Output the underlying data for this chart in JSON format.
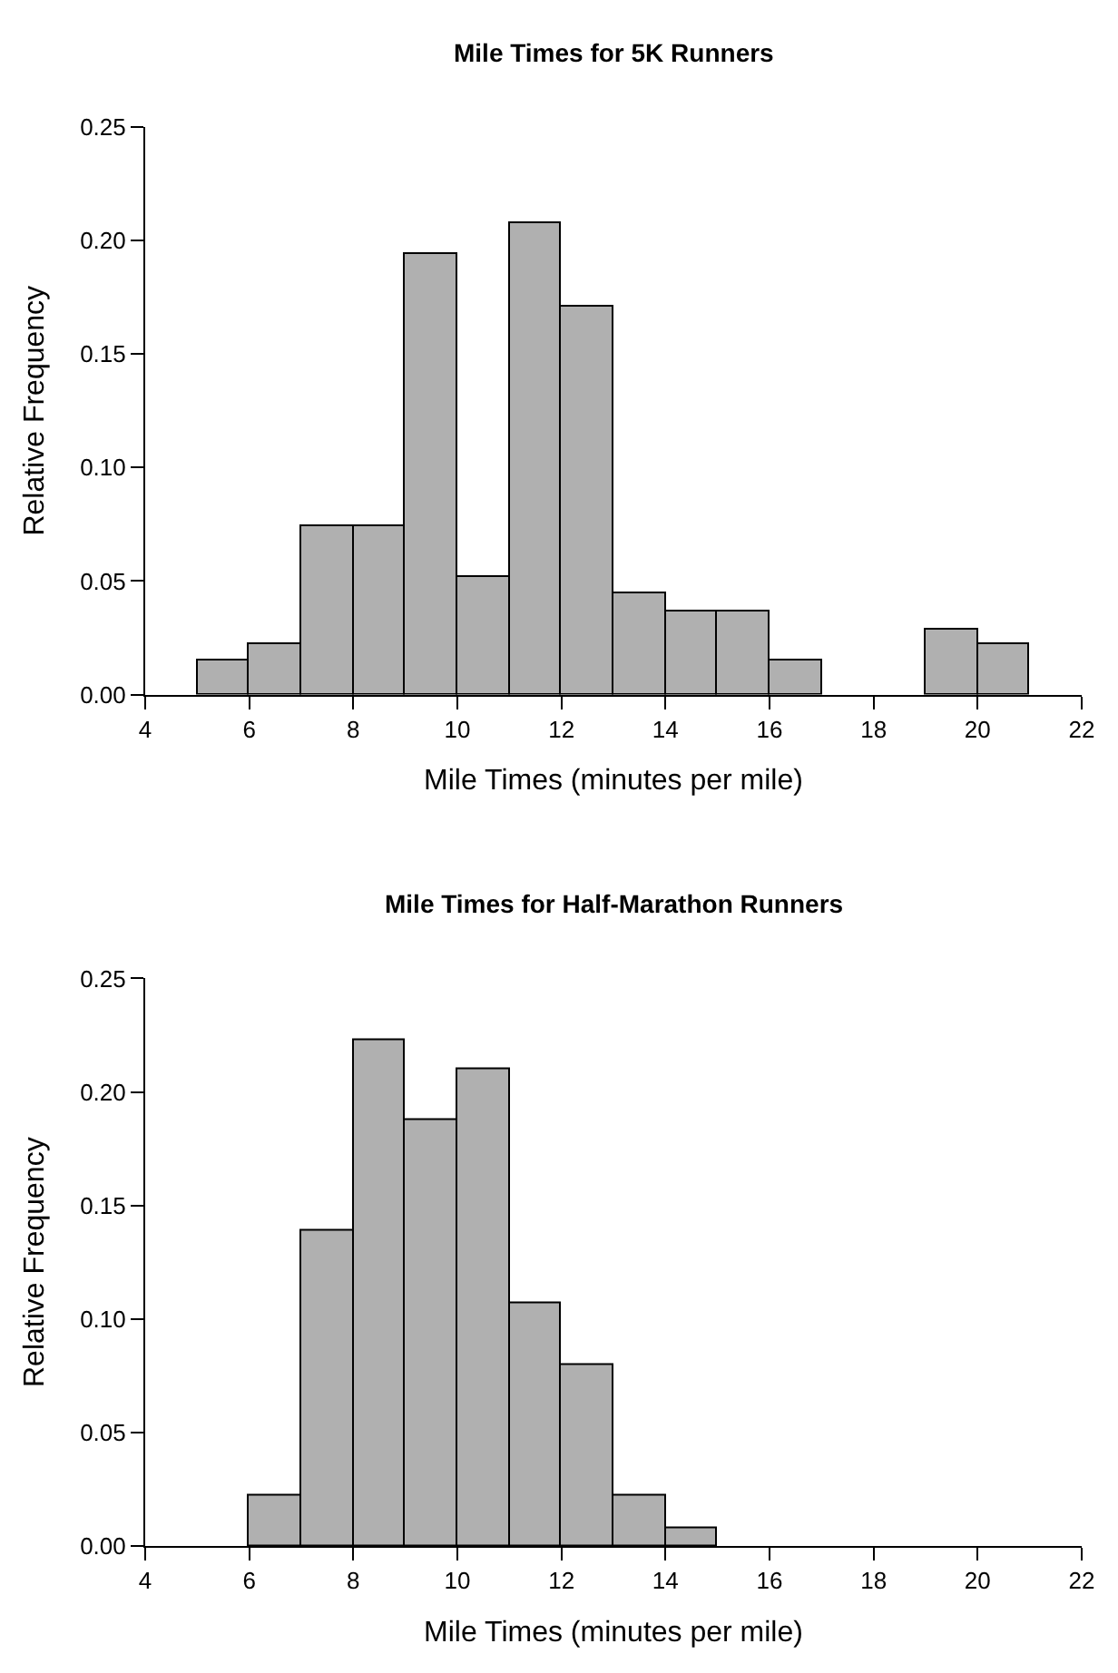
{
  "chart_data": [
    {
      "type": "histogram",
      "title": "Mile Times for 5K Runners",
      "xlabel": "Mile Times (minutes per mile)",
      "ylabel": "Relative Frequency",
      "color": "#b0b0b0",
      "bins": [
        4,
        5,
        6,
        7,
        8,
        9,
        10,
        11,
        12,
        13,
        14,
        15,
        16,
        17,
        18,
        19,
        20,
        21,
        22
      ],
      "values": [
        0,
        0.015,
        0.022,
        0.074,
        0.074,
        0.194,
        0.052,
        0.208,
        0.171,
        0.045,
        0.037,
        0.037,
        0.015,
        0,
        0,
        0.029,
        0.022,
        0
      ],
      "xlim": [
        4,
        22
      ],
      "xticks": [
        4,
        6,
        8,
        10,
        12,
        14,
        16,
        18,
        20,
        22
      ],
      "ylim": [
        0,
        0.25
      ],
      "yticks": [
        {
          "value": 0,
          "label": "0.00"
        },
        {
          "value": 0.05,
          "label": "0.05"
        },
        {
          "value": 0.1,
          "label": "0.10"
        },
        {
          "value": 0.15,
          "label": "0.15"
        },
        {
          "value": 0.2,
          "label": "0.20"
        },
        {
          "value": 0.25,
          "label": "0.25"
        }
      ]
    },
    {
      "type": "histogram",
      "title": "Mile Times for Half-Marathon Runners",
      "xlabel": "Mile Times (minutes per mile)",
      "ylabel": "Relative Frequency",
      "color": "#b0b0b0",
      "bins": [
        4,
        5,
        6,
        7,
        8,
        9,
        10,
        11,
        12,
        13,
        14,
        15,
        16,
        17,
        18,
        19,
        20,
        21,
        22
      ],
      "values": [
        0,
        0,
        0.022,
        0.139,
        0.223,
        0.188,
        0.21,
        0.107,
        0.08,
        0.022,
        0.008,
        0,
        0,
        0,
        0,
        0,
        0,
        0
      ],
      "xlim": [
        4,
        22
      ],
      "xticks": [
        4,
        6,
        8,
        10,
        12,
        14,
        16,
        18,
        20,
        22
      ],
      "ylim": [
        0,
        0.25
      ],
      "yticks": [
        {
          "value": 0,
          "label": "0.00"
        },
        {
          "value": 0.05,
          "label": "0.05"
        },
        {
          "value": 0.1,
          "label": "0.10"
        },
        {
          "value": 0.15,
          "label": "0.15"
        },
        {
          "value": 0.2,
          "label": "0.20"
        },
        {
          "value": 0.25,
          "label": "0.25"
        }
      ]
    }
  ]
}
